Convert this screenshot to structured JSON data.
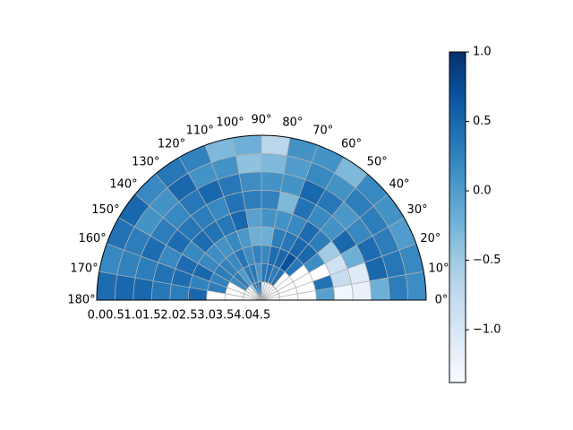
{
  "chart_data": {
    "type": "heatmap",
    "projection": "polar-half",
    "theta_range_deg": [
      0,
      180
    ],
    "r_range": [
      0,
      4.5
    ],
    "theta_bin_deg": 10,
    "r_edges": [
      0,
      0.5,
      1.0,
      1.5,
      2.0,
      2.5,
      3.0,
      3.5,
      4.0,
      4.5
    ],
    "theta_tick_labels": [
      "0°",
      "10°",
      "20°",
      "30°",
      "40°",
      "50°",
      "60°",
      "70°",
      "80°",
      "90°",
      "100°",
      "110°",
      "120°",
      "130°",
      "140°",
      "150°",
      "160°",
      "170°",
      "180°"
    ],
    "r_tick_labels": [
      "4.5",
      "4.0",
      "3.5",
      "3.0",
      "2.5",
      "2.0",
      "1.5",
      "1.0",
      "0.5",
      "0.0"
    ],
    "colormap": "Blues",
    "vmin": -1.38,
    "vmax": 1.0,
    "colorbar_ticks": [
      1.0,
      0.5,
      0.0,
      -0.5,
      -1.0
    ],
    "colorbar_tick_labels": [
      "1.0",
      "0.5",
      "0.0",
      "−0.5",
      "−1.0"
    ],
    "grid": true,
    "values": [
      [
        0.15,
        0.3,
        -0.2,
        -1.2,
        -1.3,
        -0.05,
        null,
        null,
        null
      ],
      [
        0.2,
        0.35,
        0.5,
        -1.1,
        -0.8,
        0.4,
        null,
        null,
        null
      ],
      [
        0.0,
        0.3,
        0.45,
        -0.2,
        -0.9,
        null,
        null,
        null,
        null
      ],
      [
        0.1,
        0.3,
        0.2,
        0.5,
        -0.5,
        0.15,
        null,
        null,
        null
      ],
      [
        0.2,
        0.3,
        0.05,
        0.1,
        0.3,
        0.5,
        0.35,
        null,
        null
      ],
      [
        -0.3,
        0.1,
        0.35,
        0.2,
        0.45,
        0.5,
        0.7,
        0.4,
        null
      ],
      [
        0.1,
        0.2,
        0.5,
        0.4,
        0.2,
        0.35,
        0.5,
        0.3,
        null
      ],
      [
        0.1,
        0.0,
        0.1,
        -0.3,
        0.1,
        0.3,
        0.45,
        0.4,
        -1.15
      ],
      [
        -0.7,
        -0.3,
        0.1,
        0.25,
        0.1,
        -0.2,
        0.2,
        0.35,
        -1.15
      ],
      [
        -0.2,
        -0.4,
        0.15,
        0.3,
        -0.05,
        -0.2,
        0.25,
        0.05,
        0.5
      ],
      [
        -0.3,
        0.1,
        0.35,
        0.4,
        0.5,
        0.05,
        0.15,
        0.35,
        0.35
      ],
      [
        0.25,
        0.1,
        0.5,
        0.2,
        0.35,
        0.2,
        0.35,
        0.3,
        0.25
      ],
      [
        0.35,
        0.5,
        0.35,
        0.3,
        0.4,
        0.1,
        0.2,
        0.0,
        -0.5
      ],
      [
        0.2,
        0.1,
        0.2,
        0.35,
        0.45,
        0.15,
        0.25,
        0.3,
        null
      ],
      [
        0.5,
        0.1,
        0.3,
        0.45,
        0.2,
        0.2,
        0.3,
        0.2,
        null
      ],
      [
        0.4,
        0.3,
        0.45,
        0.2,
        0.45,
        0.5,
        0.25,
        null,
        null
      ],
      [
        0.2,
        0.25,
        0.3,
        0.4,
        0.45,
        0.25,
        0.3,
        null,
        null
      ],
      [
        0.45,
        0.5,
        0.5,
        0.35,
        0.3,
        0.5,
        null,
        null,
        null
      ]
    ]
  }
}
